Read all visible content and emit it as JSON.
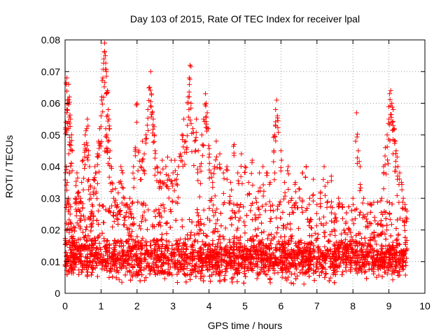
{
  "chart_data": {
    "type": "scatter",
    "title": "Day 103 of 2015, Rate Of TEC Index for receiver lpal",
    "xlabel": "GPS time / hours",
    "ylabel": "ROTI / TECUs",
    "xlim": [
      0,
      10
    ],
    "ylim": [
      0,
      0.08
    ],
    "x_ticks": [
      "0",
      "1",
      "2",
      "3",
      "4",
      "5",
      "6",
      "7",
      "8",
      "9",
      "10"
    ],
    "y_ticks": [
      "0",
      "0.01",
      "0.02",
      "0.03",
      "0.04",
      "0.05",
      "0.06",
      "0.07",
      "0.08"
    ],
    "grid": true,
    "marker": "+",
    "color": "#ff0000",
    "series": [
      {
        "name": "ROTI",
        "x": [
          0.02,
          0.05,
          0.08,
          0.1,
          0.12,
          0.15,
          0.18,
          0.2,
          0.05,
          0.07,
          0.1,
          0.13,
          0.03,
          0.06,
          0.09,
          0.11,
          0.14,
          0.17,
          0.19,
          0.22,
          0.25,
          0.28,
          0.3,
          0.33,
          0.36,
          0.4,
          0.43,
          0.46,
          0.5,
          0.53,
          0.56,
          0.6,
          0.62,
          0.65,
          0.68,
          0.7,
          0.72,
          0.75,
          0.78,
          0.8,
          0.83,
          0.86,
          0.9,
          0.93,
          0.96,
          1.0,
          1.02,
          1.05,
          1.08,
          1.1,
          1.12,
          1.15,
          1.18,
          1.2,
          1.13,
          1.16,
          1.19,
          1.22,
          1.25,
          1.28,
          1.3,
          1.35,
          1.4,
          1.45,
          1.5,
          1.55,
          1.6,
          1.65,
          1.7,
          1.75,
          1.8,
          1.85,
          1.9,
          1.95,
          2.0,
          2.05,
          2.1,
          2.15,
          2.2,
          2.25,
          2.3,
          2.35,
          2.38,
          2.4,
          2.42,
          2.45,
          2.48,
          2.5,
          2.55,
          2.6,
          2.65,
          2.7,
          2.75,
          2.8,
          2.85,
          2.9,
          2.95,
          3.0,
          3.05,
          3.1,
          3.15,
          3.2,
          3.25,
          3.3,
          3.35,
          3.4,
          3.42,
          3.45,
          3.47,
          3.5,
          3.55,
          3.6,
          3.65,
          3.7,
          3.75,
          3.8,
          3.85,
          3.9,
          3.92,
          3.95,
          3.98,
          4.0,
          4.05,
          4.1,
          4.15,
          4.2,
          4.3,
          4.4,
          4.5,
          4.6,
          4.7,
          4.8,
          4.9,
          5.0,
          5.1,
          5.2,
          5.3,
          5.4,
          5.5,
          5.6,
          5.7,
          5.8,
          5.82,
          5.85,
          5.88,
          5.9,
          6.0,
          6.1,
          6.2,
          6.3,
          6.4,
          6.5,
          6.6,
          6.7,
          6.8,
          6.9,
          7.0,
          7.1,
          7.2,
          7.3,
          7.4,
          7.5,
          7.6,
          7.7,
          7.8,
          7.9,
          8.0,
          8.1,
          8.15,
          8.2,
          8.3,
          8.4,
          8.5,
          8.6,
          8.7,
          8.8,
          8.85,
          8.9,
          8.95,
          9.0,
          9.02,
          9.05,
          9.08,
          9.1,
          9.12,
          9.15,
          9.18,
          9.2,
          9.25,
          9.3,
          9.35,
          9.4,
          9.45,
          9.5
        ],
        "y": [
          0.054,
          0.058,
          0.06,
          0.066,
          0.062,
          0.055,
          0.05,
          0.045,
          0.068,
          0.061,
          0.052,
          0.047,
          0.04,
          0.035,
          0.03,
          0.028,
          0.025,
          0.022,
          0.02,
          0.018,
          0.016,
          0.03,
          0.034,
          0.038,
          0.032,
          0.026,
          0.03,
          0.035,
          0.042,
          0.047,
          0.05,
          0.052,
          0.055,
          0.045,
          0.04,
          0.034,
          0.03,
          0.028,
          0.032,
          0.036,
          0.04,
          0.038,
          0.044,
          0.048,
          0.052,
          0.056,
          0.062,
          0.068,
          0.074,
          0.079,
          0.075,
          0.07,
          0.064,
          0.058,
          0.052,
          0.05,
          0.048,
          0.055,
          0.045,
          0.04,
          0.035,
          0.03,
          0.033,
          0.028,
          0.035,
          0.04,
          0.038,
          0.03,
          0.028,
          0.027,
          0.03,
          0.025,
          0.04,
          0.046,
          0.06,
          0.045,
          0.04,
          0.048,
          0.044,
          0.05,
          0.058,
          0.065,
          0.07,
          0.063,
          0.057,
          0.055,
          0.05,
          0.045,
          0.04,
          0.035,
          0.038,
          0.042,
          0.035,
          0.04,
          0.043,
          0.036,
          0.042,
          0.038,
          0.042,
          0.036,
          0.04,
          0.044,
          0.05,
          0.055,
          0.048,
          0.053,
          0.062,
          0.068,
          0.072,
          0.06,
          0.052,
          0.048,
          0.055,
          0.045,
          0.04,
          0.05,
          0.055,
          0.063,
          0.06,
          0.057,
          0.052,
          0.043,
          0.038,
          0.035,
          0.04,
          0.048,
          0.044,
          0.038,
          0.04,
          0.035,
          0.047,
          0.038,
          0.044,
          0.04,
          0.035,
          0.042,
          0.03,
          0.038,
          0.04,
          0.038,
          0.035,
          0.045,
          0.05,
          0.058,
          0.061,
          0.056,
          0.045,
          0.035,
          0.04,
          0.03,
          0.035,
          0.033,
          0.038,
          0.04,
          0.03,
          0.036,
          0.028,
          0.032,
          0.04,
          0.035,
          0.037,
          0.025,
          0.03,
          0.028,
          0.022,
          0.02,
          0.03,
          0.057,
          0.045,
          0.04,
          0.03,
          0.025,
          0.028,
          0.024,
          0.022,
          0.03,
          0.04,
          0.046,
          0.05,
          0.055,
          0.063,
          0.064,
          0.06,
          0.054,
          0.058,
          0.052,
          0.048,
          0.045,
          0.04,
          0.038,
          0.035,
          0.03,
          0.028,
          0.026
        ]
      }
    ],
    "dense_band": {
      "x_range": [
        0,
        9.5
      ],
      "y_center": 0.011,
      "y_min": 0.002,
      "y_max_typical": 0.025,
      "approx_count": 4000
    }
  }
}
